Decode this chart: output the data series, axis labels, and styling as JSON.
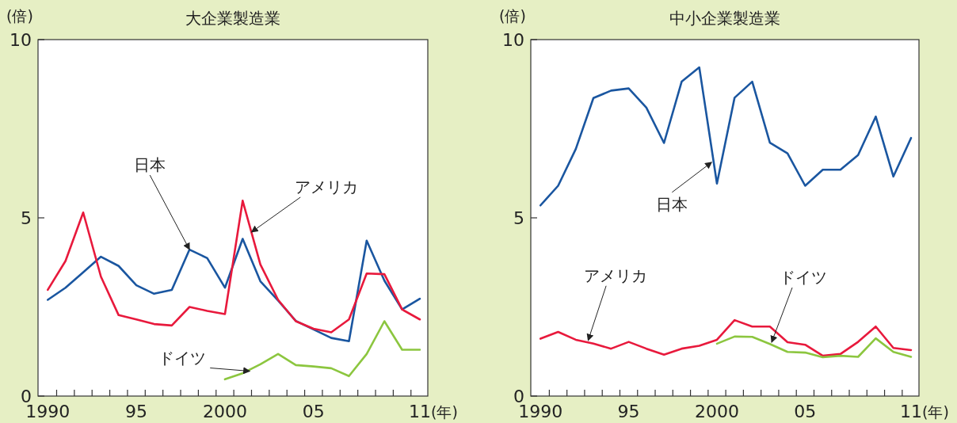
{
  "chart_data": [
    {
      "type": "line",
      "title": "大企業製造業",
      "ylabel": "(倍)",
      "xlabel": "(年)",
      "x": [
        1990,
        1991,
        1992,
        1993,
        1994,
        1995,
        1996,
        1997,
        1998,
        1999,
        2000,
        2001,
        2002,
        2003,
        2004,
        2005,
        2006,
        2007,
        2008,
        2009,
        2010,
        2011
      ],
      "series": [
        {
          "color": "#1a56a0",
          "values": [
            2.7,
            3.04,
            3.47,
            3.91,
            3.65,
            3.11,
            2.87,
            2.98,
            4.11,
            3.87,
            3.04,
            4.41,
            3.22,
            2.68,
            2.11,
            1.87,
            1.63,
            1.54,
            4.36,
            3.24,
            2.43,
            2.73
          ]
        },
        {
          "color": "#e8193c",
          "values": [
            2.98,
            3.79,
            5.15,
            3.35,
            2.27,
            2.15,
            2.02,
            1.98,
            2.5,
            2.39,
            2.3,
            5.48,
            3.69,
            2.7,
            2.1,
            1.89,
            1.79,
            2.15,
            3.44,
            3.42,
            2.43,
            2.15
          ]
        },
        {
          "color": "#8cc63f",
          "values": [
            null,
            null,
            null,
            null,
            null,
            null,
            null,
            null,
            null,
            null,
            0.47,
            0.64,
            0.89,
            1.18,
            0.87,
            0.83,
            0.78,
            0.56,
            1.18,
            2.1,
            1.3,
            1.3
          ]
        }
      ],
      "annotations": [
        {
          "text": "日本",
          "x": 1998,
          "y": 4.11
        },
        {
          "text": "アメリカ",
          "x": 2001.5,
          "y": 4.6
        },
        {
          "text": "ドイツ",
          "x": 2001.4,
          "y": 0.7
        }
      ],
      "xlim": [
        1989.45,
        2011.45
      ],
      "ylim": [
        0,
        10
      ],
      "yticks": [
        0,
        5,
        10
      ],
      "xticks": [
        {
          "value": 1990,
          "label": "1990"
        },
        {
          "value": 1995,
          "label": "95"
        },
        {
          "value": 2000,
          "label": "2000"
        },
        {
          "value": 2005,
          "label": "05"
        },
        {
          "value": 2011,
          "label": "11"
        },
        {
          "value": 1990.5,
          "label": null
        },
        {
          "value": 1991.5,
          "label": null
        },
        {
          "value": 1992.5,
          "label": null
        },
        {
          "value": 1993.5,
          "label": null
        },
        {
          "value": 1994.5,
          "label": null
        },
        {
          "value": 1995.5,
          "label": null
        },
        {
          "value": 1996.5,
          "label": null
        },
        {
          "value": 1997.5,
          "label": null
        },
        {
          "value": 1998.5,
          "label": null
        },
        {
          "value": 1999.5,
          "label": null
        },
        {
          "value": 2000.5,
          "label": null
        },
        {
          "value": 2001.5,
          "label": null
        },
        {
          "value": 2002.5,
          "label": null
        },
        {
          "value": 2003.5,
          "label": null
        },
        {
          "value": 2004.5,
          "label": null
        },
        {
          "value": 2005.5,
          "label": null
        },
        {
          "value": 2006.5,
          "label": null
        },
        {
          "value": 2007.5,
          "label": null
        },
        {
          "value": 2008.5,
          "label": null
        },
        {
          "value": 2009.5,
          "label": null
        },
        {
          "value": 2010.5,
          "label": null
        }
      ],
      "grid": false,
      "marker": "none",
      "line_style": "solid"
    },
    {
      "type": "line",
      "title": "中小企業製造業",
      "ylabel": "(倍)",
      "xlabel": "(年)",
      "x": [
        1990,
        1991,
        1992,
        1993,
        1994,
        1995,
        1996,
        1997,
        1998,
        1999,
        2000,
        2001,
        2002,
        2003,
        2004,
        2005,
        2006,
        2007,
        2008,
        2009,
        2010,
        2011
      ],
      "series": [
        {
          "color": "#1a56a0",
          "values": [
            5.35,
            5.9,
            6.93,
            8.36,
            8.57,
            8.63,
            8.09,
            7.1,
            8.82,
            9.22,
            5.96,
            8.37,
            8.82,
            7.11,
            6.81,
            5.9,
            6.35,
            6.35,
            6.76,
            7.84,
            6.16,
            7.24
          ]
        },
        {
          "color": "#e8193c",
          "values": [
            1.61,
            1.8,
            1.58,
            1.47,
            1.33,
            1.52,
            1.33,
            1.16,
            1.33,
            1.41,
            1.58,
            2.13,
            1.95,
            1.95,
            1.51,
            1.44,
            1.13,
            1.18,
            1.52,
            1.95,
            1.35,
            1.29
          ]
        },
        {
          "color": "#8cc63f",
          "values": [
            null,
            null,
            null,
            null,
            null,
            null,
            null,
            null,
            null,
            null,
            1.47,
            1.67,
            1.66,
            1.46,
            1.24,
            1.22,
            1.09,
            1.13,
            1.1,
            1.62,
            1.24,
            1.1
          ]
        }
      ],
      "annotations": [
        {
          "text": "日本",
          "x": 1999.7,
          "y": 6.56
        },
        {
          "text": "アメリカ",
          "x": 1992.7,
          "y": 1.56
        },
        {
          "text": "ドイツ",
          "x": 2003.1,
          "y": 1.51
        }
      ],
      "xlim": [
        1989.45,
        2011.45
      ],
      "ylim": [
        0,
        10
      ],
      "yticks": [
        0,
        5,
        10
      ],
      "xticks": [
        {
          "value": 1990,
          "label": "1990"
        },
        {
          "value": 1995,
          "label": "95"
        },
        {
          "value": 2000,
          "label": "2000"
        },
        {
          "value": 2005,
          "label": "05"
        },
        {
          "value": 2011,
          "label": "11"
        },
        {
          "value": 1990.5,
          "label": null
        },
        {
          "value": 1991.5,
          "label": null
        },
        {
          "value": 1992.5,
          "label": null
        },
        {
          "value": 1993.5,
          "label": null
        },
        {
          "value": 1994.5,
          "label": null
        },
        {
          "value": 1995.5,
          "label": null
        },
        {
          "value": 1996.5,
          "label": null
        },
        {
          "value": 1997.5,
          "label": null
        },
        {
          "value": 1998.5,
          "label": null
        },
        {
          "value": 1999.5,
          "label": null
        },
        {
          "value": 2000.5,
          "label": null
        },
        {
          "value": 2001.5,
          "label": null
        },
        {
          "value": 2002.5,
          "label": null
        },
        {
          "value": 2003.5,
          "label": null
        },
        {
          "value": 2004.5,
          "label": null
        },
        {
          "value": 2005.5,
          "label": null
        },
        {
          "value": 2006.5,
          "label": null
        },
        {
          "value": 2007.5,
          "label": null
        },
        {
          "value": 2008.5,
          "label": null
        },
        {
          "value": 2009.5,
          "label": null
        },
        {
          "value": 2010.5,
          "label": null
        }
      ],
      "grid": false,
      "marker": "none",
      "line_style": "solid"
    }
  ]
}
